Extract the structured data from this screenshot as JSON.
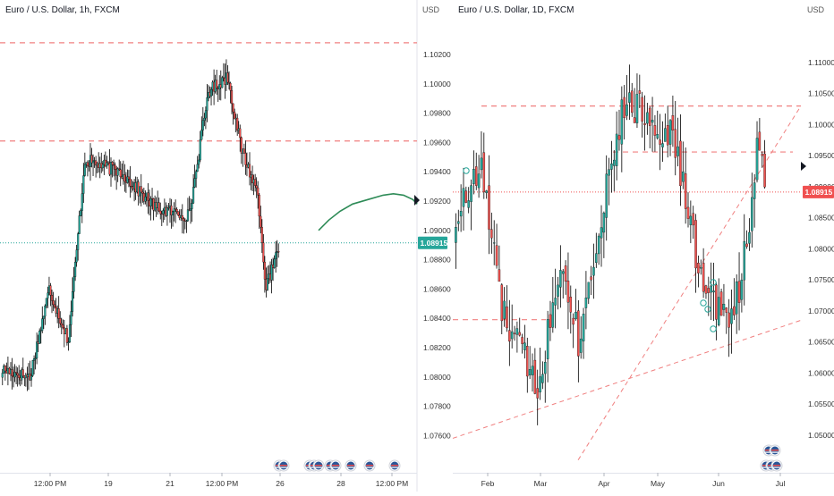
{
  "colors": {
    "up": "#26a69a",
    "down": "#ef5350",
    "wick": "#000000",
    "level_line": "#f08080",
    "price_tag": "#f05050",
    "price_tag_teal": "#26a69a",
    "projection": "#2e8b57",
    "axis_text": "#333333",
    "divider": "#e0e3eb"
  },
  "chart_data": [
    {
      "type": "candlestick",
      "title": "Euro / U.S. Dollar, 1h, FXCM",
      "currency_label": "USD",
      "ylim": [
        1.0745,
        1.1034
      ],
      "yticks": [
        "1.10200",
        "1.10000",
        "1.09800",
        "1.09600",
        "1.09400",
        "1.09200",
        "1.09000",
        "1.08800",
        "1.08600",
        "1.08400",
        "1.08200",
        "1.08000",
        "1.07800",
        "1.07600"
      ],
      "xticks": [
        "12:00 PM",
        "19",
        "21",
        "12:00 PM",
        "26",
        "28",
        "12:00 PM"
      ],
      "price_tag": "1.08915",
      "current_price": 1.08915,
      "horizontal_levels": [
        1.1028,
        1.0961
      ],
      "projection_path": [
        [
          0.0,
          1.09
        ],
        [
          0.06,
          1.0907
        ],
        [
          0.125,
          1.0913
        ],
        [
          0.2,
          1.0918
        ],
        [
          0.29,
          1.0921
        ],
        [
          0.38,
          1.0924
        ],
        [
          0.44,
          1.0925
        ],
        [
          0.5,
          1.0924
        ],
        [
          0.555,
          1.0921
        ],
        [
          0.58,
          1.0918
        ]
      ],
      "segments": [
        {
          "start": 1.0805,
          "end": 1.08,
          "n": 20
        },
        {
          "start": 1.08,
          "end": 1.086,
          "n": 14
        },
        {
          "start": 1.086,
          "end": 1.0825,
          "n": 14
        },
        {
          "start": 1.0825,
          "end": 1.0948,
          "n": 12
        },
        {
          "start": 1.0948,
          "end": 1.094,
          "n": 26
        },
        {
          "start": 1.094,
          "end": 1.0915,
          "n": 26
        },
        {
          "start": 1.0915,
          "end": 1.091,
          "n": 24
        },
        {
          "start": 1.091,
          "end": 1.0995,
          "n": 14
        },
        {
          "start": 1.0995,
          "end": 1.1005,
          "n": 14
        },
        {
          "start": 1.1005,
          "end": 1.0955,
          "n": 10
        },
        {
          "start": 1.0955,
          "end": 1.0925,
          "n": 12
        },
        {
          "start": 1.0925,
          "end": 1.086,
          "n": 6
        },
        {
          "start": 1.086,
          "end": 1.089,
          "n": 10
        }
      ]
    },
    {
      "type": "candlestick",
      "title": "Euro / U.S. Dollar, 1D, FXCM",
      "currency_label": "USD",
      "ylim": [
        1.0464,
        1.1146
      ],
      "yticks": [
        "1.11000",
        "1.10500",
        "1.10000",
        "1.09500",
        "1.09000",
        "1.08500",
        "1.08000",
        "1.07500",
        "1.07000",
        "1.06500",
        "1.06000",
        "1.05500",
        "1.05000"
      ],
      "xticks": [
        "Feb",
        "Mar",
        "Apr",
        "May",
        "Jun",
        "Jul"
      ],
      "price_tag": "1.08915",
      "current_price": 1.08915,
      "horizontal_levels": [
        1.103,
        1.0956,
        1.0686
      ],
      "trendlines": [
        {
          "from": [
            0.0,
            1.0495
          ],
          "to": [
            1.0,
            1.0685
          ]
        },
        {
          "from": [
            0.36,
            1.046
          ],
          "to": [
            1.0,
            1.103
          ]
        }
      ],
      "segments": [
        {
          "start": 1.085,
          "end": 1.093,
          "n": 10
        },
        {
          "start": 1.093,
          "end": 1.07,
          "n": 8
        },
        {
          "start": 1.07,
          "end": 1.058,
          "n": 14
        },
        {
          "start": 1.058,
          "end": 1.079,
          "n": 10
        },
        {
          "start": 1.079,
          "end": 1.065,
          "n": 6
        },
        {
          "start": 1.065,
          "end": 1.095,
          "n": 13
        },
        {
          "start": 1.095,
          "end": 1.104,
          "n": 6
        },
        {
          "start": 1.104,
          "end": 1.098,
          "n": 18
        },
        {
          "start": 1.098,
          "end": 1.09,
          "n": 4
        },
        {
          "start": 1.09,
          "end": 1.073,
          "n": 8
        },
        {
          "start": 1.073,
          "end": 1.069,
          "n": 9
        },
        {
          "start": 1.069,
          "end": 1.075,
          "n": 6
        },
        {
          "start": 1.075,
          "end": 1.096,
          "n": 6
        },
        {
          "start": 1.096,
          "end": 1.0892,
          "n": 4
        }
      ]
    }
  ]
}
